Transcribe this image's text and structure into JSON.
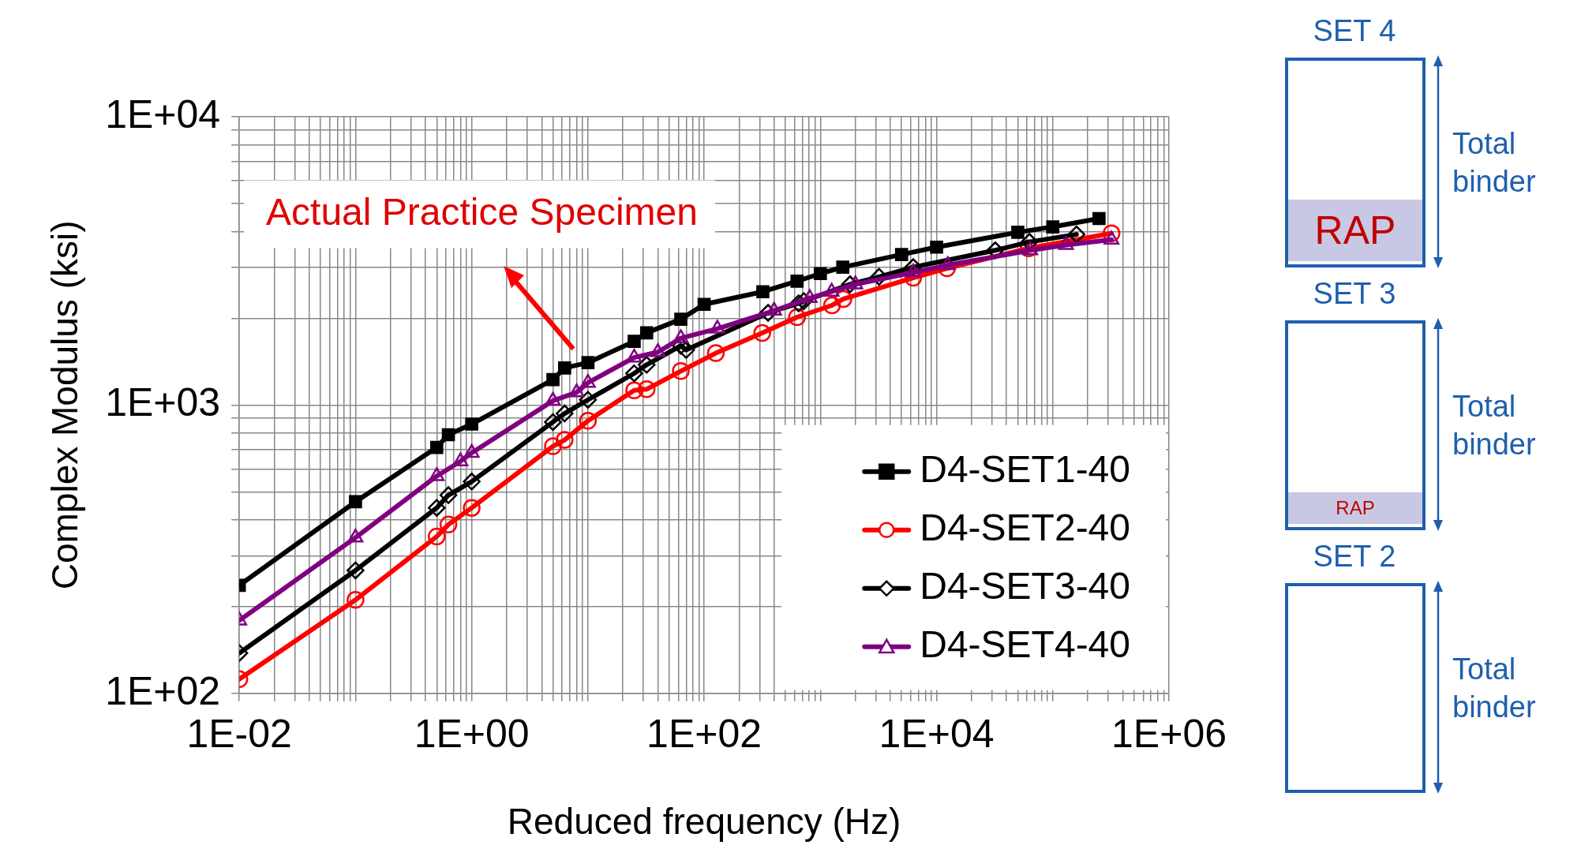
{
  "chart_data": {
    "type": "line",
    "xlabel": "Reduced frequency (Hz)",
    "ylabel": "Complex Modulus (ksi)",
    "log": "xy",
    "grid": true,
    "legend": "bottom right",
    "line_style": "solid",
    "xlim": [
      0.01,
      1000000
    ],
    "ylim": [
      100,
      10000
    ],
    "xticks": [
      {
        "value": 0.01,
        "label": "1E-02"
      },
      {
        "value": 0.02,
        "label": null
      },
      {
        "value": 0.03,
        "label": null
      },
      {
        "value": 0.04,
        "label": null
      },
      {
        "value": 0.05,
        "label": null
      },
      {
        "value": 0.06,
        "label": null
      },
      {
        "value": 0.07,
        "label": null
      },
      {
        "value": 0.08,
        "label": null
      },
      {
        "value": 0.09,
        "label": null
      },
      {
        "value": 0.1,
        "label": null
      },
      {
        "value": 0.2,
        "label": null
      },
      {
        "value": 0.3,
        "label": null
      },
      {
        "value": 0.4,
        "label": null
      },
      {
        "value": 0.5,
        "label": null
      },
      {
        "value": 0.6,
        "label": null
      },
      {
        "value": 0.7,
        "label": null
      },
      {
        "value": 0.8,
        "label": null
      },
      {
        "value": 0.9,
        "label": null
      },
      {
        "value": 1,
        "label": "1E+00"
      },
      {
        "value": 2,
        "label": null
      },
      {
        "value": 3,
        "label": null
      },
      {
        "value": 4,
        "label": null
      },
      {
        "value": 5,
        "label": null
      },
      {
        "value": 6,
        "label": null
      },
      {
        "value": 7,
        "label": null
      },
      {
        "value": 8,
        "label": null
      },
      {
        "value": 9,
        "label": null
      },
      {
        "value": 10,
        "label": null
      },
      {
        "value": 20,
        "label": null
      },
      {
        "value": 30,
        "label": null
      },
      {
        "value": 40,
        "label": null
      },
      {
        "value": 50,
        "label": null
      },
      {
        "value": 60,
        "label": null
      },
      {
        "value": 70,
        "label": null
      },
      {
        "value": 80,
        "label": null
      },
      {
        "value": 90,
        "label": null
      },
      {
        "value": 100,
        "label": "1E+02"
      },
      {
        "value": 200,
        "label": null
      },
      {
        "value": 300,
        "label": null
      },
      {
        "value": 400,
        "label": null
      },
      {
        "value": 500,
        "label": null
      },
      {
        "value": 600,
        "label": null
      },
      {
        "value": 700,
        "label": null
      },
      {
        "value": 800,
        "label": null
      },
      {
        "value": 900,
        "label": null
      },
      {
        "value": 1000,
        "label": null
      },
      {
        "value": 2000,
        "label": null
      },
      {
        "value": 3000,
        "label": null
      },
      {
        "value": 4000,
        "label": null
      },
      {
        "value": 5000,
        "label": null
      },
      {
        "value": 6000,
        "label": null
      },
      {
        "value": 7000,
        "label": null
      },
      {
        "value": 8000,
        "label": null
      },
      {
        "value": 9000,
        "label": null
      },
      {
        "value": 10000,
        "label": "1E+04"
      },
      {
        "value": 20000,
        "label": null
      },
      {
        "value": 30000,
        "label": null
      },
      {
        "value": 40000,
        "label": null
      },
      {
        "value": 50000,
        "label": null
      },
      {
        "value": 60000,
        "label": null
      },
      {
        "value": 70000,
        "label": null
      },
      {
        "value": 80000,
        "label": null
      },
      {
        "value": 90000,
        "label": null
      },
      {
        "value": 100000,
        "label": null
      },
      {
        "value": 200000,
        "label": null
      },
      {
        "value": 300000,
        "label": null
      },
      {
        "value": 400000,
        "label": null
      },
      {
        "value": 500000,
        "label": null
      },
      {
        "value": 600000,
        "label": null
      },
      {
        "value": 700000,
        "label": null
      },
      {
        "value": 800000,
        "label": null
      },
      {
        "value": 900000,
        "label": null
      },
      {
        "value": 1000000,
        "label": "1E+06"
      }
    ],
    "yticks": [
      {
        "value": 100,
        "label": "1E+02"
      },
      {
        "value": 200,
        "label": null
      },
      {
        "value": 300,
        "label": null
      },
      {
        "value": 400,
        "label": null
      },
      {
        "value": 500,
        "label": null
      },
      {
        "value": 600,
        "label": null
      },
      {
        "value": 700,
        "label": null
      },
      {
        "value": 800,
        "label": null
      },
      {
        "value": 900,
        "label": null
      },
      {
        "value": 1000,
        "label": "1E+03"
      },
      {
        "value": 2000,
        "label": null
      },
      {
        "value": 3000,
        "label": null
      },
      {
        "value": 4000,
        "label": null
      },
      {
        "value": 5000,
        "label": null
      },
      {
        "value": 6000,
        "label": null
      },
      {
        "value": 7000,
        "label": null
      },
      {
        "value": 8000,
        "label": null
      },
      {
        "value": 9000,
        "label": null
      },
      {
        "value": 10000,
        "label": "1E+04"
      }
    ],
    "series": [
      {
        "name": "D4-SET1-40",
        "color": "#000000",
        "marker": "square",
        "x": [
          0.01,
          0.1,
          0.5,
          0.63,
          1,
          5,
          6.3,
          10,
          25,
          32,
          63,
          100,
          320,
          630,
          1000,
          1560,
          5000,
          10000,
          50000,
          100000,
          250000
        ],
        "values": [
          237,
          462,
          713,
          789,
          859,
          1225,
          1345,
          1403,
          1663,
          1780,
          1985,
          2235,
          2473,
          2690,
          2858,
          3008,
          3326,
          3531,
          3975,
          4150,
          4436
        ]
      },
      {
        "name": "D4-SET2-40",
        "color": "#ff0000",
        "marker": "circle",
        "x": [
          0.01,
          0.1,
          0.5,
          0.63,
          1,
          5,
          6.3,
          10,
          25,
          32,
          63,
          126,
          316,
          630,
          1260,
          1580,
          6300,
          12300,
          62000,
          320000
        ],
        "values": [
          112,
          211,
          350,
          385,
          440,
          720,
          757,
          882,
          1125,
          1135,
          1312,
          1514,
          1778,
          2018,
          2218,
          2333,
          2763,
          2980,
          3497,
          3942
        ]
      },
      {
        "name": "D4-SET3-40",
        "color": "#000000",
        "marker": "diamond",
        "x": [
          0.01,
          0.1,
          0.5,
          0.63,
          1,
          5,
          6.3,
          10,
          25,
          32,
          63,
          70,
          355,
          650,
          720,
          1800,
          3200,
          6300,
          32000,
          63000,
          160000
        ],
        "values": [
          138,
          267,
          440,
          487,
          543,
          873,
          935,
          1043,
          1288,
          1380,
          1607,
          1553,
          2089,
          2254,
          2293,
          2624,
          2786,
          3008,
          3442,
          3681,
          3908
        ]
      },
      {
        "name": "D4-SET4-40",
        "color": "#800080",
        "marker": "triangle",
        "x": [
          0.01,
          0.1,
          0.5,
          0.8,
          1,
          5,
          8,
          10,
          25,
          40,
          63,
          130,
          400,
          810,
          1250,
          2000,
          6300,
          12500,
          64000,
          130000,
          320000
        ],
        "values": [
          179,
          347,
          567,
          638,
          683,
          1035,
          1107,
          1195,
          1462,
          1527,
          1706,
          1841,
          2125,
          2350,
          2473,
          2622,
          2884,
          3057,
          3442,
          3591,
          3749
        ]
      }
    ],
    "annotations": [
      "Actual Practice Specimen",
      "SET 4",
      "RAP",
      "Total binder",
      "SET 3",
      "RAP",
      "Total binder",
      "SET 2",
      "Total binder"
    ]
  }
}
